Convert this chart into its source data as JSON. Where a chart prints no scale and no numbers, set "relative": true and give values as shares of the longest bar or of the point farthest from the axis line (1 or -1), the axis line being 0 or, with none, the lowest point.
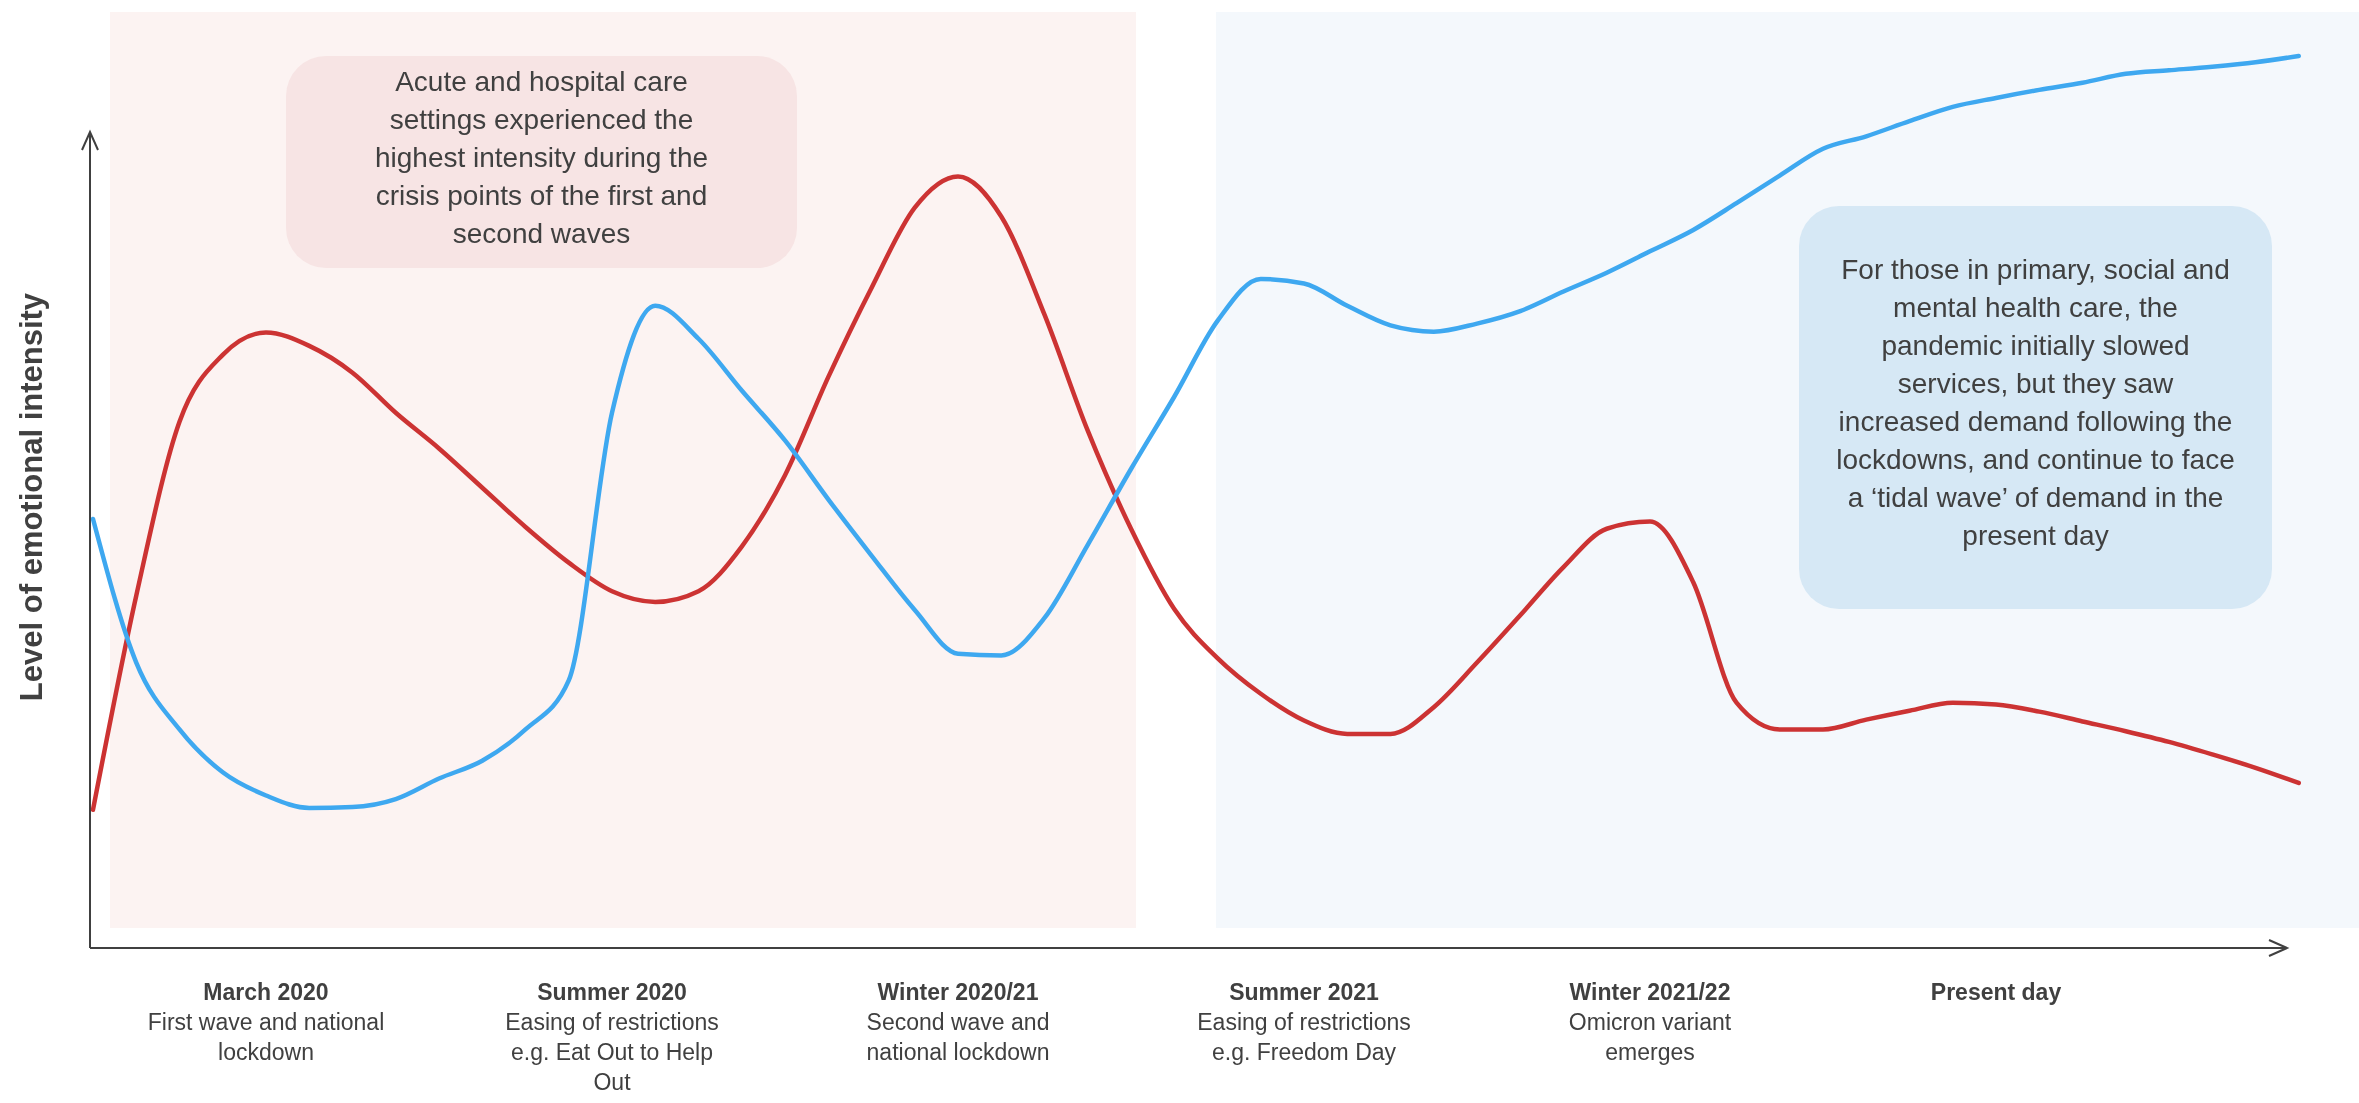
{
  "chart_data": {
    "type": "line",
    "relative": true,
    "ylabel": "Level of emotional intensity",
    "categories": [
      null,
      null,
      null,
      null,
      "March 2020\nFirst wave and national lockdown",
      null,
      null,
      null,
      null,
      null,
      null,
      null,
      "Summer 2020\nEasing of restrictions e.g. Eat Out to Help Out",
      null,
      null,
      null,
      null,
      null,
      null,
      null,
      "Winter 2020/21\nSecond wave and national lockdown",
      null,
      null,
      null,
      null,
      null,
      null,
      null,
      "Summer 2021\nEasing of restrictions e.g. Freedom Day",
      null,
      null,
      null,
      null,
      null,
      null,
      null,
      "Winter 2021/22\nOmicron variant emerges",
      null,
      null,
      null,
      null,
      null,
      null,
      null,
      "Present day",
      null,
      null,
      null,
      null,
      null,
      null,
      null
    ],
    "series": [
      {
        "color": "#cc3333",
        "values": [
          0.155,
          0.395,
          0.59,
          0.665,
          0.69,
          0.675,
          0.645,
          0.6,
          0.56,
          0.516,
          0.472,
          0.432,
          0.4,
          0.388,
          0.4,
          0.45,
          0.53,
          0.64,
          0.74,
          0.83,
          0.865,
          0.82,
          0.71,
          0.58,
          0.47,
          0.38,
          0.325,
          0.285,
          0.255,
          0.24,
          0.24,
          0.27,
          0.32,
          0.373,
          0.427,
          0.47,
          0.478,
          0.41,
          0.275,
          0.245,
          0.245,
          0.256,
          0.266,
          0.275,
          0.273,
          0.265,
          0.254,
          0.243,
          0.231,
          0.217,
          0.202,
          0.185
        ]
      },
      {
        "color": "#3ea8f0",
        "values": [
          0.481,
          0.32,
          0.245,
          0.197,
          0.171,
          0.157,
          0.158,
          0.167,
          0.19,
          0.21,
          0.245,
          0.3,
          0.6,
          0.72,
          0.683,
          0.625,
          0.569,
          0.503,
          0.44,
          0.379,
          0.33,
          0.328,
          0.37,
          0.452,
          0.537,
          0.618,
          0.703,
          0.75,
          0.745,
          0.72,
          0.698,
          0.691,
          0.7,
          0.714,
          0.736,
          0.757,
          0.781,
          0.805,
          0.835,
          0.866,
          0.896,
          0.91,
          0.927,
          0.943,
          0.953,
          0.962,
          0.97,
          0.98,
          0.984,
          0.988,
          0.993,
          1
        ]
      }
    ],
    "annotations": [
      "Acute and hospital care settings experienced the highest intensity during the crisis points of the first and second waves",
      "For those in primary, social and mental health care, the pandemic initially slowed services, but they saw increased demand following the lockdowns, and continue to face a ‘tidal wave’ of demand in the present day"
    ]
  }
}
